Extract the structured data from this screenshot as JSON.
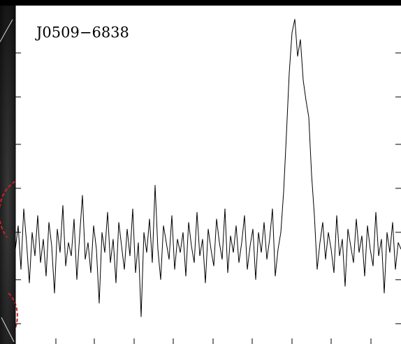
{
  "chart_data": {
    "type": "line",
    "annotation": "J0509−6838",
    "x": [
      0,
      4,
      8,
      12,
      16,
      20,
      24,
      28,
      32,
      36,
      40,
      44,
      48,
      52,
      56,
      60,
      64,
      68,
      72,
      76,
      80,
      84,
      88,
      92,
      96,
      100,
      104,
      108,
      112,
      116,
      120,
      124,
      128,
      132,
      136,
      140,
      144,
      148,
      152,
      156,
      160,
      164,
      168,
      172,
      176,
      180,
      184,
      188,
      192,
      196,
      200,
      204,
      208,
      212,
      216,
      220,
      224,
      228,
      232,
      236,
      240,
      244,
      248,
      252,
      256,
      260,
      264,
      268,
      272,
      276,
      280,
      284,
      288,
      292,
      296,
      300,
      304,
      308,
      312,
      316,
      320,
      324,
      328,
      332,
      336,
      340,
      344,
      348,
      352,
      356,
      360,
      364,
      368,
      372,
      376,
      380,
      384,
      388,
      392,
      396,
      400,
      404,
      408,
      412,
      416,
      420,
      424,
      428,
      432,
      436,
      440,
      444,
      448,
      452,
      456,
      460,
      464,
      468,
      472,
      476,
      480,
      484,
      488,
      492,
      496,
      500,
      504,
      508,
      512,
      516,
      520,
      524,
      528,
      532,
      536,
      540,
      544,
      548,
      552
    ],
    "series": [
      {
        "color": "#000000",
        "values": [
          28,
          35,
          22,
          40,
          30,
          18,
          33,
          26,
          38,
          24,
          31,
          20,
          36,
          29,
          15,
          34,
          27,
          41,
          23,
          30,
          26,
          37,
          19,
          32,
          44,
          25,
          30,
          21,
          35,
          28,
          12,
          33,
          27,
          39,
          24,
          31,
          18,
          36,
          29,
          22,
          34,
          26,
          40,
          21,
          30,
          8,
          33,
          27,
          37,
          24,
          47,
          28,
          19,
          35,
          30,
          25,
          38,
          22,
          31,
          27,
          33,
          20,
          36,
          29,
          24,
          39,
          26,
          31,
          18,
          34,
          28,
          23,
          37,
          30,
          25,
          40,
          21,
          32,
          27,
          35,
          24,
          30,
          38,
          22,
          29,
          34,
          19,
          33,
          27,
          36,
          25,
          31,
          40,
          20,
          28,
          33,
          45,
          62,
          80,
          92,
          96,
          85,
          90,
          78,
          72,
          67,
          50,
          38,
          22,
          30,
          36,
          25,
          33,
          28,
          21,
          38,
          26,
          31,
          17,
          34,
          29,
          24,
          37,
          27,
          32,
          20,
          35,
          28,
          23,
          39,
          26,
          31,
          15,
          33,
          27,
          36,
          22,
          30,
          28
        ]
      }
    ],
    "xlim": [
      0,
      552
    ],
    "ylim": [
      0,
      100
    ],
    "xticks": [
      58,
      113,
      170,
      226,
      283,
      339,
      396,
      452,
      509
    ],
    "yticks": [
      6,
      19,
      33,
      46,
      59,
      73,
      86
    ]
  }
}
